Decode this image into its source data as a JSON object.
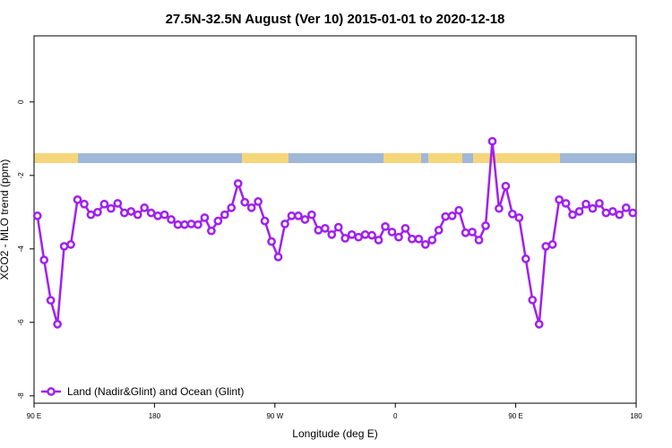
{
  "chart_data": {
    "type": "line",
    "title": "27.5N-32.5N August (Ver 10)   2015-01-01 to 2020-12-18",
    "x_label": "Longitude (deg E)",
    "y_label": "XCO2 - MLO trend (ppm)",
    "xlim": [
      90,
      540
    ],
    "ylim": [
      -8.2,
      1.8
    ],
    "xticks": [
      {
        "value": 90,
        "label": "90 E"
      },
      180,
      {
        "value": 270,
        "label": "90 W"
      },
      {
        "value": 360,
        "label": "0"
      },
      {
        "value": 450,
        "label": "90 E"
      },
      {
        "value": 540,
        "label": "180"
      }
    ],
    "yticks": [
      0,
      -2,
      -4,
      -6,
      -8
    ],
    "legend": "bottom-left",
    "x": [
      92.5,
      97.5,
      102.5,
      107.5,
      112.5,
      117.5,
      122.5,
      127.5,
      132.5,
      137.5,
      142.5,
      147.5,
      152.5,
      157.5,
      162.5,
      167.5,
      172.5,
      177.5,
      182.5,
      187.5,
      192.5,
      197.5,
      202.5,
      207.5,
      212.5,
      217.5,
      222.5,
      227.5,
      232.5,
      237.5,
      242.5,
      247.5,
      252.5,
      257.5,
      262.5,
      267.5,
      272.5,
      277.5,
      282.5,
      287.5,
      292.5,
      297.5,
      302.5,
      307.5,
      312.5,
      317.5,
      322.5,
      327.5,
      332.5,
      337.5,
      342.5,
      347.5,
      352.5,
      357.5,
      362.5,
      367.5,
      372.5,
      377.5,
      382.5,
      387.5,
      392.5,
      397.5,
      402.5,
      407.5,
      412.5,
      417.5,
      422.5,
      427.5,
      432.5,
      437.5,
      442.5,
      447.5,
      452.5,
      457.5,
      462.5,
      467.5,
      472.5,
      477.5,
      482.5,
      487.5,
      492.5,
      497.5,
      502.5,
      507.5,
      512.5,
      517.5,
      522.5,
      527.5,
      532.5,
      537.5
    ],
    "series": [
      {
        "name": "Land (Nadir&Glint) and Ocean (Glint)",
        "color": "#a020f0",
        "values": [
          -3.1,
          -4.3,
          -5.4,
          -6.05,
          -3.93,
          -3.88,
          -2.66,
          -2.78,
          -3.07,
          -3.0,
          -2.78,
          -2.9,
          -2.76,
          -3.02,
          -2.98,
          -3.07,
          -2.88,
          -3.02,
          -3.1,
          -3.07,
          -3.2,
          -3.34,
          -3.34,
          -3.32,
          -3.34,
          -3.15,
          -3.51,
          -3.24,
          -3.07,
          -2.88,
          -2.22,
          -2.73,
          -2.88,
          -2.71,
          -3.24,
          -3.8,
          -4.22,
          -3.32,
          -3.1,
          -3.1,
          -3.2,
          -3.07,
          -3.49,
          -3.44,
          -3.61,
          -3.41,
          -3.71,
          -3.61,
          -3.68,
          -3.61,
          -3.63,
          -3.76,
          -3.39,
          -3.54,
          -3.68,
          -3.44,
          -3.73,
          -3.73,
          -3.88,
          -3.76,
          -3.49,
          -3.12,
          -3.1,
          -2.95,
          -3.56,
          -3.54,
          -3.76,
          -3.37,
          -1.07,
          -2.9,
          -2.29,
          -3.05,
          -3.15,
          -4.27,
          -5.39,
          -6.05,
          -3.93,
          -3.88,
          -2.66,
          -2.76,
          -3.07,
          -2.98,
          -2.78,
          -2.9,
          -2.76,
          -3.02,
          -2.98,
          -3.07,
          -2.88,
          -3.02
        ]
      }
    ]
  }
}
